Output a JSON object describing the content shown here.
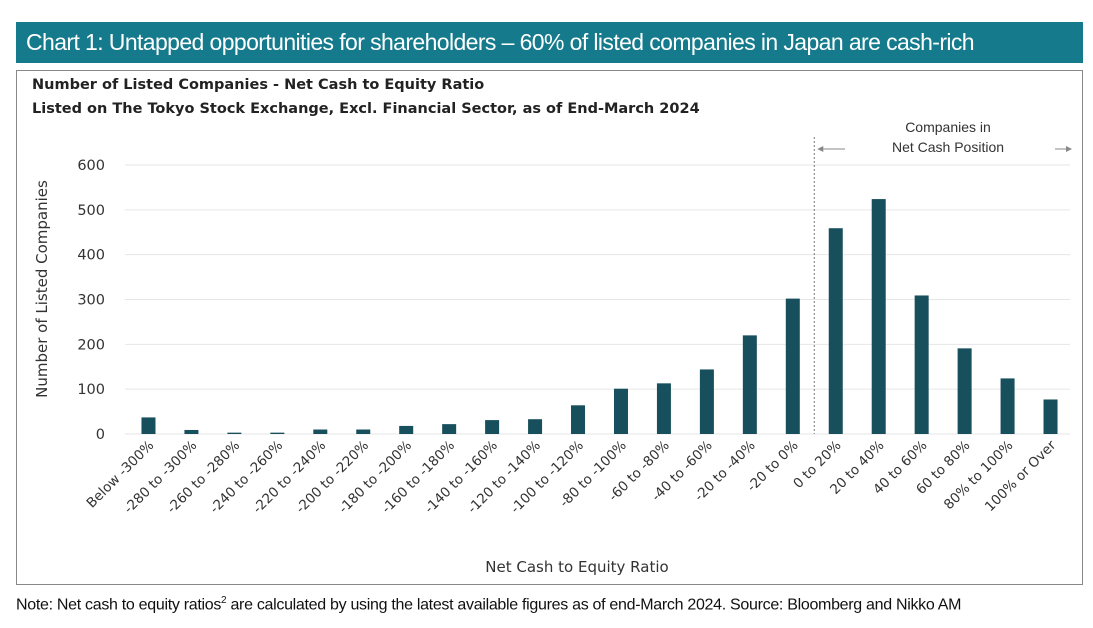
{
  "header": {
    "title": "Chart 1: Untapped opportunities for shareholders – 60% of listed companies in Japan are cash-rich"
  },
  "footer": {
    "note_pre": "Note: Net cash to equity ratios",
    "note_sup": "2",
    "note_post": " are calculated by using the latest available figures as of end-March 2024. Source: Bloomberg and Nikko AM"
  },
  "chart_data": {
    "type": "bar",
    "title": "Number of Listed Companies - Net Cash to Equity Ratio",
    "subtitle": "Listed on The Tokyo Stock Exchange,  Excl. Financial Sector, as of End-March 2024",
    "xlabel": "Net Cash to Equity Ratio",
    "ylabel": "Number of Listed Companies",
    "ylim": [
      0,
      600
    ],
    "yticks": [
      0,
      100,
      200,
      300,
      400,
      500,
      600
    ],
    "grid": true,
    "bar_color": "#174f5c",
    "categories": [
      "Below -300%",
      "-280 to -300%",
      "-260 to -280%",
      "-240 to -260%",
      "-220 to -240%",
      "-200 to -220%",
      "-180 to -200%",
      "-160 to -180%",
      "-140 to -160%",
      "-120 to -140%",
      "-100 to -120%",
      "-80 to -100%",
      "-60 to -80%",
      "-40 to -60%",
      "-20 to -40%",
      "-20 to 0%",
      "0 to 20%",
      "20 to 40%",
      "40 to 60%",
      "60 to 80%",
      "80% to 100%",
      "100% or Over"
    ],
    "values": [
      37,
      9,
      3,
      3,
      10,
      10,
      18,
      22,
      31,
      33,
      64,
      101,
      113,
      144,
      220,
      302,
      459,
      524,
      309,
      191,
      124,
      77
    ],
    "annotation": {
      "text_line1": "Companies in",
      "text_line2": "Net Cash Position",
      "divider_after_category": "-20 to 0%"
    }
  },
  "colors": {
    "title_bar": "#157a8c",
    "bar": "#174f5c",
    "grid": "#e6e6e6"
  }
}
